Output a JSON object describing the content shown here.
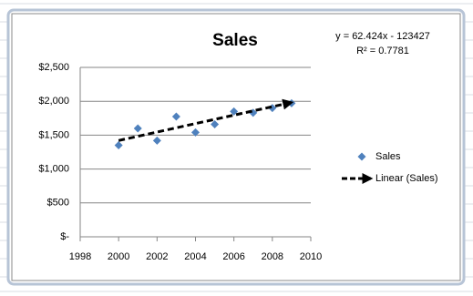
{
  "chart_data": {
    "type": "scatter",
    "title": "Sales",
    "x": [
      2000,
      2001,
      2002,
      2003,
      2004,
      2005,
      2006,
      2007,
      2008,
      2009
    ],
    "series": [
      {
        "name": "Sales",
        "color": "#4f81bd",
        "values": [
          1350,
          1600,
          1420,
          1775,
          1540,
          1660,
          1850,
          1830,
          1900,
          1970
        ]
      }
    ],
    "trendline": {
      "name": "Linear (Sales)",
      "color": "#000000",
      "slope": 62.424,
      "intercept": -123427,
      "equation": "y = 62.424x - 123427",
      "r_squared_label": "R² = 0.7781"
    },
    "xlim": [
      1998,
      2010
    ],
    "xticks": [
      1998,
      2000,
      2002,
      2004,
      2006,
      2008,
      2010
    ],
    "ylim": [
      0,
      2500
    ],
    "yticks": [
      {
        "value": 0,
        "label": "$-"
      },
      {
        "value": 500,
        "label": "$500"
      },
      {
        "value": 1000,
        "label": "$1,000"
      },
      {
        "value": 1500,
        "label": "$1,500"
      },
      {
        "value": 2000,
        "label": "$2,000"
      },
      {
        "value": 2500,
        "label": "$2,500"
      }
    ],
    "grid": true,
    "legend": "right"
  }
}
